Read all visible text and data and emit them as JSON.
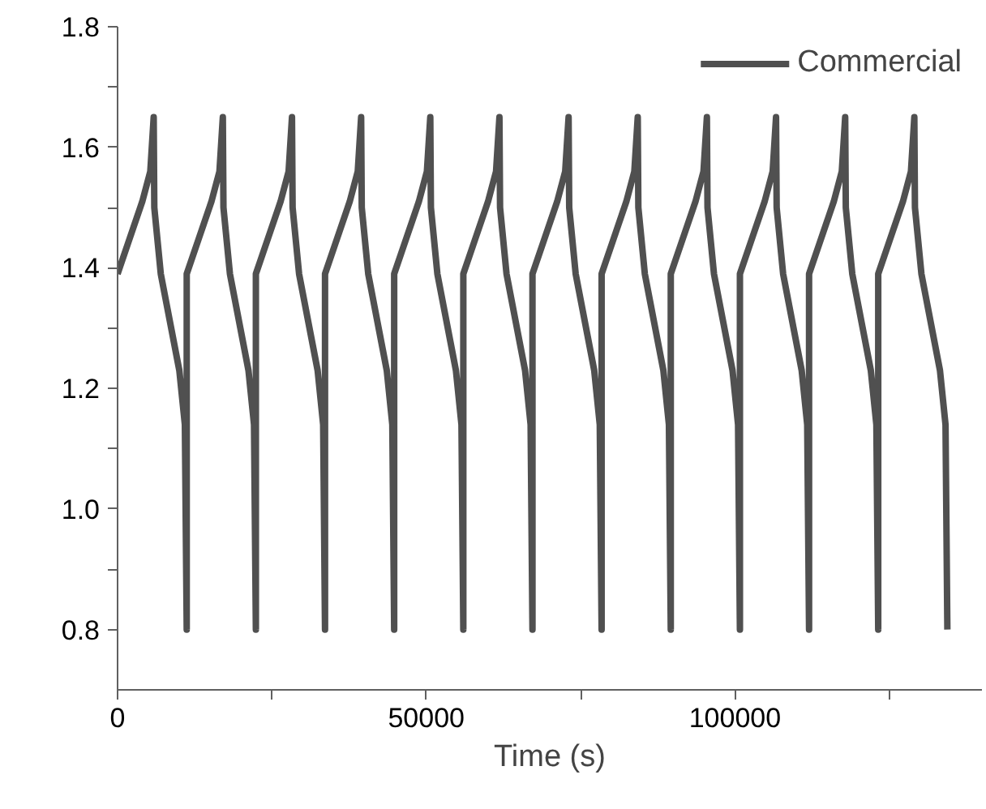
{
  "chart_data": {
    "type": "line",
    "xlabel": "Time (s)",
    "xlim": [
      0,
      140000
    ],
    "ylim": [
      0.7,
      1.8
    ],
    "xticks": [
      0,
      {
        "value": 25000,
        "label": null
      },
      50000,
      {
        "value": 75000,
        "label": null
      },
      100000,
      {
        "value": 125000,
        "label": null
      }
    ],
    "yticks": [
      0.8,
      {
        "value": 0.9,
        "label": null
      },
      {
        "value": 1.0,
        "label": "1.0"
      },
      {
        "value": 1.1,
        "label": null
      },
      1.2,
      {
        "value": 1.3,
        "label": null
      },
      1.4,
      {
        "value": 1.5,
        "label": null
      },
      1.6,
      {
        "value": 1.7,
        "label": null
      },
      1.8
    ],
    "grid": false,
    "legend": "top right",
    "line_style": "solid",
    "marker": "none",
    "series": [
      {
        "name": "Commercial",
        "color": "#505050",
        "x": [
          0,
          2000,
          4000,
          5300,
          5850,
          5950,
          7000,
          8500,
          10000,
          10900,
          11200,
          11200,
          13200,
          15200,
          16500,
          17050,
          17150,
          18200,
          19700,
          21200,
          22100,
          22400,
          22400,
          24400,
          26400,
          27700,
          28250,
          28350,
          29400,
          30900,
          32400,
          33300,
          33600,
          33600,
          35600,
          37600,
          38900,
          39450,
          39550,
          40600,
          42100,
          43600,
          44500,
          44800,
          44800,
          46800,
          48800,
          50100,
          50650,
          50750,
          51800,
          53300,
          54800,
          55700,
          56000,
          56000,
          58000,
          60000,
          61300,
          61850,
          61950,
          63000,
          64500,
          66000,
          66900,
          67200,
          67200,
          69200,
          71200,
          72500,
          73050,
          73150,
          74200,
          75700,
          77200,
          78100,
          78400,
          78400,
          80400,
          82400,
          83700,
          84250,
          84350,
          85400,
          86900,
          88400,
          89300,
          89600,
          89600,
          91600,
          93600,
          94900,
          95450,
          95550,
          96600,
          98100,
          99600,
          100500,
          100800,
          100800,
          102800,
          104800,
          106100,
          106650,
          106750,
          107800,
          109300,
          110800,
          111700,
          112000,
          112000,
          114000,
          116000,
          117300,
          117850,
          117950,
          119000,
          120500,
          122000,
          122900,
          123200,
          123200,
          125200,
          127200,
          128500,
          129050,
          129150,
          130200,
          131700,
          133200,
          134100,
          134400
        ],
        "values": [
          1.39,
          1.45,
          1.51,
          1.56,
          1.65,
          1.5,
          1.39,
          1.31,
          1.23,
          1.14,
          0.8,
          1.39,
          1.45,
          1.51,
          1.56,
          1.65,
          1.5,
          1.39,
          1.31,
          1.23,
          1.14,
          0.8,
          1.39,
          1.45,
          1.51,
          1.56,
          1.65,
          1.5,
          1.39,
          1.31,
          1.23,
          1.14,
          0.8,
          1.39,
          1.45,
          1.51,
          1.56,
          1.65,
          1.5,
          1.39,
          1.31,
          1.23,
          1.14,
          0.8,
          1.39,
          1.45,
          1.51,
          1.56,
          1.65,
          1.5,
          1.39,
          1.31,
          1.23,
          1.14,
          0.8,
          1.39,
          1.45,
          1.51,
          1.56,
          1.65,
          1.5,
          1.39,
          1.31,
          1.23,
          1.14,
          0.8,
          1.39,
          1.45,
          1.51,
          1.56,
          1.65,
          1.5,
          1.39,
          1.31,
          1.23,
          1.14,
          0.8,
          1.39,
          1.45,
          1.51,
          1.56,
          1.65,
          1.5,
          1.39,
          1.31,
          1.23,
          1.14,
          0.8,
          1.39,
          1.45,
          1.51,
          1.56,
          1.65,
          1.5,
          1.39,
          1.31,
          1.23,
          1.14,
          0.8,
          1.39,
          1.45,
          1.51,
          1.56,
          1.65,
          1.5,
          1.39,
          1.31,
          1.23,
          1.14,
          0.8,
          1.39,
          1.45,
          1.51,
          1.56,
          1.65,
          1.5,
          1.39,
          1.31,
          1.23,
          1.14,
          0.8,
          1.39,
          1.45,
          1.51,
          1.56,
          1.65,
          1.5,
          1.39,
          1.31,
          1.23,
          1.14,
          0.8
        ]
      }
    ]
  }
}
